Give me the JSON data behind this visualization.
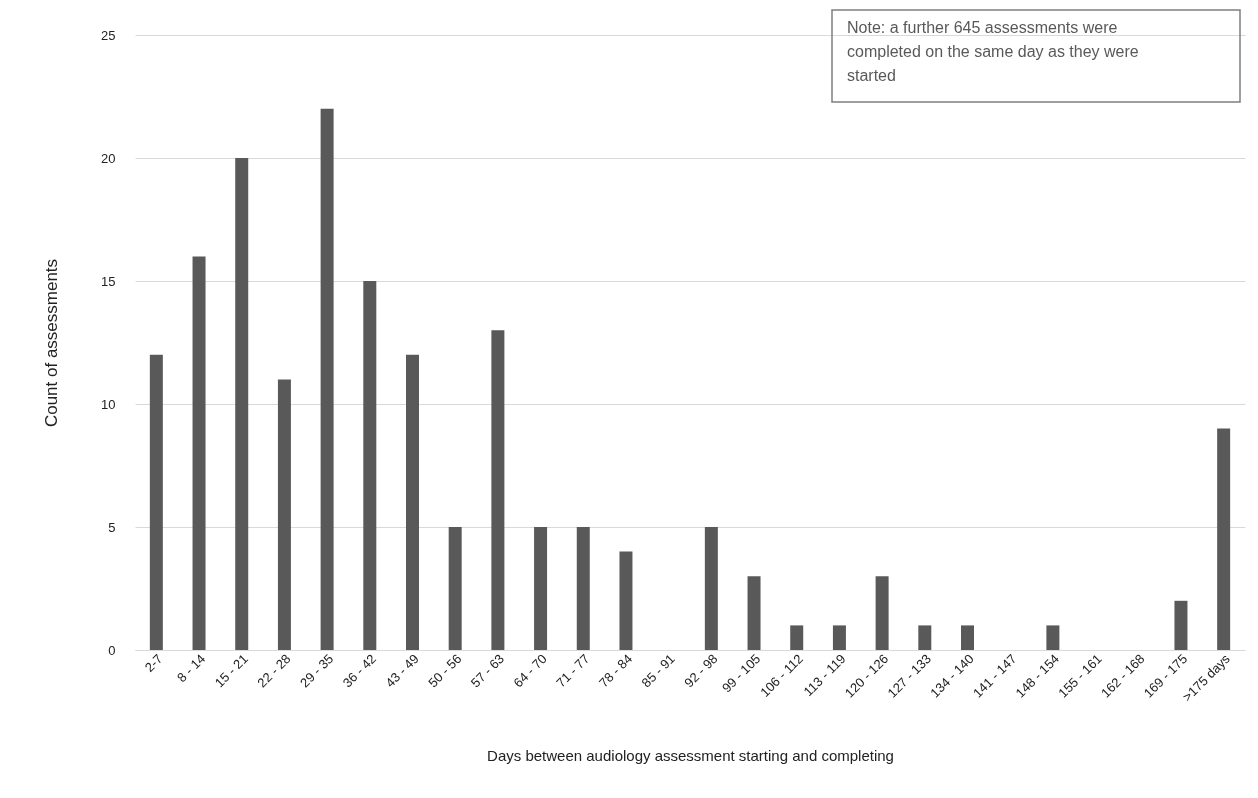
{
  "chart_data": {
    "type": "bar",
    "xlabel": "Days between audiology assessment starting and completing",
    "ylabel": "Count of assessments",
    "categories": [
      "2-7",
      "8 - 14",
      "15 - 21",
      "22 - 28",
      "29 - 35",
      "36 - 42",
      "43 - 49",
      "50 - 56",
      "57 - 63",
      "64 - 70",
      "71 - 77",
      "78 - 84",
      "85 - 91",
      "92 - 98",
      "99 - 105",
      "106 - 112",
      "113 - 119",
      "120 - 126",
      "127 - 133",
      "134 - 140",
      "141 - 147",
      "148 - 154",
      "155 - 161",
      "162 - 168",
      "169 - 175",
      ">175 days"
    ],
    "values": [
      12,
      16,
      20,
      11,
      22,
      15,
      12,
      5,
      13,
      5,
      5,
      4,
      0,
      5,
      3,
      1,
      1,
      3,
      1,
      1,
      0,
      1,
      0,
      0,
      2,
      9
    ],
    "color": "#595959",
    "ylim": [
      0,
      25
    ],
    "yticks": [
      0,
      5,
      10,
      15,
      20,
      25
    ],
    "grid": "y",
    "annotations": [
      "Note: a further 645 assessments were completed on the same day as they were started"
    ]
  }
}
